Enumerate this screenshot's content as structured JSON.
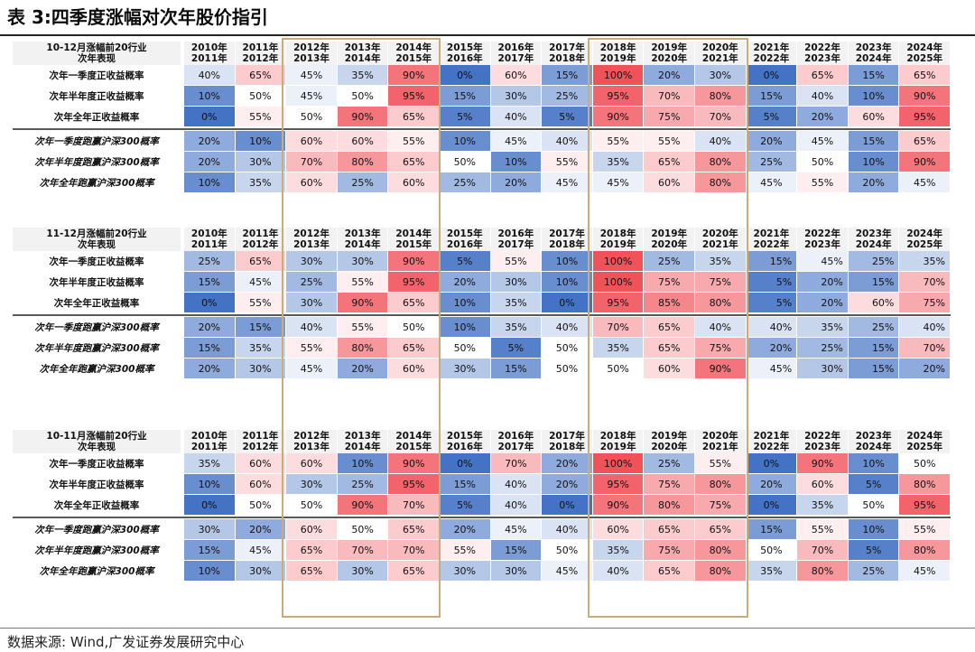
{
  "title": "表 3:四季度涨幅对次年股价指引",
  "footer": "数据来源: Wind,广发证券发展研究中心",
  "colors": {
    "blue": "#4472c4",
    "white": "#ffffff",
    "red": "#f0525a",
    "header_bg": "#f2f2f2",
    "separator": "#595959",
    "highlight_border": "#c9ac7a"
  },
  "row_labels": [
    "次年一季度正收益概率",
    "次年半年度正收益概率",
    "次年全年正收益概率",
    "次年一季度跑赢沪深300概率",
    "次年半年度跑赢沪深300概率",
    "次年全年跑赢沪深300概率"
  ],
  "sections": [
    {
      "header_label": [
        "10-12月涨幅前20行业",
        "次年表现"
      ],
      "year_labels": [
        [
          "2010年",
          "2011年"
        ],
        [
          "2011年",
          "2012年"
        ],
        [
          "2012年",
          "2013年"
        ],
        [
          "2013年",
          "2014年"
        ],
        [
          "2014年",
          "2015年"
        ],
        [
          "2015年",
          "2016年"
        ],
        [
          "2016年",
          "2017年"
        ],
        [
          "2017年",
          "2018年"
        ],
        [
          "2018年",
          "2019年"
        ],
        [
          "2019年",
          "2020年"
        ],
        [
          "2020年",
          "2021年"
        ],
        [
          "2021年",
          "2022年"
        ],
        [
          "2022年",
          "2023年"
        ],
        [
          "2023年",
          "2024年"
        ],
        [
          "2024年",
          "2025年"
        ]
      ],
      "rows": [
        [
          "40%",
          "65%",
          "45%",
          "35%",
          "90%",
          "0%",
          "60%",
          "15%",
          "100%",
          "20%",
          "30%",
          "0%",
          "65%",
          "15%",
          "65%"
        ],
        [
          "10%",
          "50%",
          "45%",
          "50%",
          "95%",
          "15%",
          "30%",
          "25%",
          "95%",
          "70%",
          "80%",
          "15%",
          "40%",
          "10%",
          "90%"
        ],
        [
          "0%",
          "55%",
          "50%",
          "90%",
          "65%",
          "5%",
          "40%",
          "5%",
          "90%",
          "75%",
          "70%",
          "5%",
          "20%",
          "60%",
          "95%"
        ],
        [
          "20%",
          "10%",
          "60%",
          "60%",
          "55%",
          "10%",
          "45%",
          "40%",
          "55%",
          "55%",
          "40%",
          "20%",
          "45%",
          "15%",
          "65%"
        ],
        [
          "20%",
          "30%",
          "70%",
          "80%",
          "65%",
          "50%",
          "10%",
          "55%",
          "35%",
          "65%",
          "80%",
          "25%",
          "50%",
          "10%",
          "90%"
        ],
        [
          "10%",
          "35%",
          "60%",
          "25%",
          "60%",
          "25%",
          "20%",
          "45%",
          "45%",
          "60%",
          "80%",
          "45%",
          "55%",
          "20%",
          "45%"
        ]
      ]
    },
    {
      "header_label": [
        "11-12月涨幅前20行业",
        "次年表现"
      ],
      "year_labels": [
        [
          "2010年",
          "2011年"
        ],
        [
          "2011年",
          "2012年"
        ],
        [
          "2012年",
          "2013年"
        ],
        [
          "2013年",
          "2014年"
        ],
        [
          "2014年",
          "2015年"
        ],
        [
          "2015年",
          "2016年"
        ],
        [
          "2016年",
          "2017年"
        ],
        [
          "2017年",
          "2018年"
        ],
        [
          "2018年",
          "2019年"
        ],
        [
          "2019年",
          "2020年"
        ],
        [
          "2020年",
          "2021年"
        ],
        [
          "2021年",
          "2022年"
        ],
        [
          "2022年",
          "2023年"
        ],
        [
          "2023年",
          "2024年"
        ],
        [
          "2024年",
          "2025年"
        ]
      ],
      "rows": [
        [
          "25%",
          "65%",
          "30%",
          "30%",
          "90%",
          "5%",
          "55%",
          "10%",
          "100%",
          "25%",
          "35%",
          "15%",
          "45%",
          "25%",
          "35%"
        ],
        [
          "15%",
          "45%",
          "25%",
          "55%",
          "95%",
          "20%",
          "30%",
          "10%",
          "100%",
          "75%",
          "75%",
          "5%",
          "20%",
          "15%",
          "70%"
        ],
        [
          "0%",
          "55%",
          "30%",
          "90%",
          "65%",
          "10%",
          "35%",
          "0%",
          "95%",
          "85%",
          "80%",
          "5%",
          "20%",
          "60%",
          "75%"
        ],
        [
          "20%",
          "15%",
          "40%",
          "55%",
          "50%",
          "10%",
          "35%",
          "40%",
          "70%",
          "65%",
          "40%",
          "40%",
          "35%",
          "25%",
          "40%"
        ],
        [
          "15%",
          "35%",
          "55%",
          "80%",
          "65%",
          "50%",
          "5%",
          "50%",
          "35%",
          "65%",
          "75%",
          "20%",
          "25%",
          "15%",
          "70%"
        ],
        [
          "20%",
          "30%",
          "45%",
          "20%",
          "60%",
          "30%",
          "15%",
          "50%",
          "50%",
          "60%",
          "90%",
          "45%",
          "30%",
          "15%",
          "20%"
        ]
      ]
    },
    {
      "header_label": [
        "10-11月涨幅前20行业",
        "次年表现"
      ],
      "year_labels": [
        [
          "2010年",
          "2011年"
        ],
        [
          "2011年",
          "2012年"
        ],
        [
          "2012年",
          "2013年"
        ],
        [
          "2013年",
          "2014年"
        ],
        [
          "2014年",
          "2015年"
        ],
        [
          "2015年",
          "2016年"
        ],
        [
          "2016年",
          "2017年"
        ],
        [
          "2017年",
          "2018年"
        ],
        [
          "2018年",
          "2019年"
        ],
        [
          "2019年",
          "2020年"
        ],
        [
          "2020年",
          "2021年"
        ],
        [
          "2021年",
          "2022年"
        ],
        [
          "2022年",
          "2023年"
        ],
        [
          "2023年",
          "2024年"
        ],
        [
          "2024年",
          "2025年"
        ]
      ],
      "rows": [
        [
          "35%",
          "60%",
          "60%",
          "10%",
          "90%",
          "0%",
          "70%",
          "20%",
          "100%",
          "25%",
          "55%",
          "0%",
          "90%",
          "10%",
          "50%"
        ],
        [
          "10%",
          "60%",
          "30%",
          "25%",
          "95%",
          "15%",
          "40%",
          "20%",
          "95%",
          "75%",
          "80%",
          "20%",
          "60%",
          "5%",
          "80%"
        ],
        [
          "0%",
          "50%",
          "50%",
          "90%",
          "70%",
          "5%",
          "40%",
          "0%",
          "90%",
          "80%",
          "75%",
          "0%",
          "35%",
          "50%",
          "95%"
        ],
        [
          "30%",
          "20%",
          "60%",
          "50%",
          "65%",
          "20%",
          "45%",
          "40%",
          "60%",
          "65%",
          "65%",
          "15%",
          "55%",
          "10%",
          "55%"
        ],
        [
          "15%",
          "45%",
          "65%",
          "70%",
          "70%",
          "55%",
          "15%",
          "50%",
          "35%",
          "75%",
          "80%",
          "50%",
          "70%",
          "5%",
          "80%"
        ],
        [
          "10%",
          "30%",
          "65%",
          "30%",
          "65%",
          "30%",
          "30%",
          "45%",
          "40%",
          "65%",
          "80%",
          "35%",
          "80%",
          "25%",
          "45%"
        ]
      ]
    }
  ]
}
